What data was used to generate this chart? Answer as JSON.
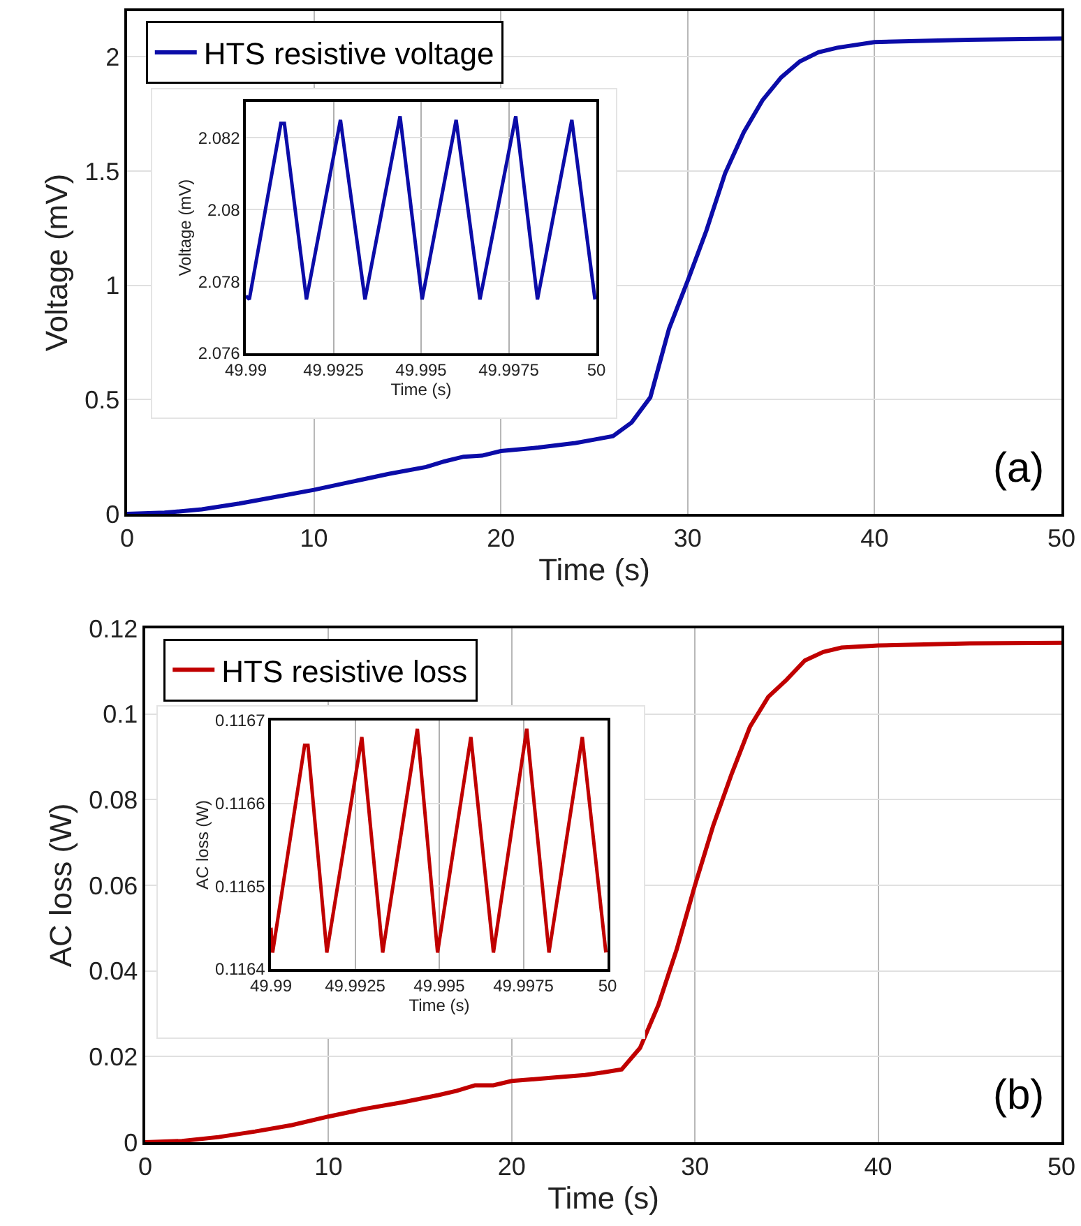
{
  "chart_data": [
    {
      "type": "line",
      "xlabel": "Time (s)",
      "ylabel": "Voltage (mV)",
      "xlim": [
        0,
        50
      ],
      "ylim": [
        0,
        2.2
      ],
      "xticks": [
        0,
        10,
        20,
        30,
        40,
        50
      ],
      "yticks": [
        0,
        0.5,
        1,
        1.5,
        2
      ],
      "grid": true,
      "legend": "top left",
      "annotations": [
        "(a)"
      ],
      "x": [
        0,
        2,
        4,
        6,
        8,
        10,
        12,
        14,
        16,
        17,
        18,
        19,
        20,
        22,
        24,
        25,
        26,
        27,
        28,
        29,
        30,
        31,
        32,
        33,
        34,
        35,
        36,
        37,
        38,
        40,
        45,
        50
      ],
      "series": [
        {
          "name": "HTS resistive voltage",
          "color": "#0b0ca8",
          "values": [
            0,
            0.005,
            0.02,
            0.045,
            0.075,
            0.105,
            0.14,
            0.175,
            0.205,
            0.23,
            0.25,
            0.255,
            0.275,
            0.29,
            0.31,
            0.325,
            0.34,
            0.4,
            0.51,
            0.81,
            1.02,
            1.24,
            1.49,
            1.67,
            1.81,
            1.91,
            1.98,
            2.02,
            2.04,
            2.065,
            2.075,
            2.08
          ]
        }
      ]
    },
    {
      "type": "line",
      "xlabel": "Time (s)",
      "ylabel": "Voltage (mV)",
      "xlim": [
        49.99,
        50
      ],
      "ylim": [
        2.076,
        2.083
      ],
      "xticks": [
        49.99,
        49.9925,
        49.995,
        49.9975,
        50
      ],
      "yticks": [
        2.076,
        2.078,
        2.08,
        2.082
      ],
      "grid": true,
      "x": [
        49.99,
        49.9901,
        49.991,
        49.9911,
        49.99173,
        49.9927,
        49.9934,
        49.9944,
        49.99503,
        49.996,
        49.99668,
        49.9977,
        49.99832,
        49.9993,
        49.99996
      ],
      "series": [
        {
          "color": "#0b0ca8",
          "values": [
            2.0776,
            2.0775,
            2.0824,
            2.0824,
            2.0775,
            2.0825,
            2.0775,
            2.0826,
            2.0775,
            2.0825,
            2.0775,
            2.0826,
            2.0775,
            2.0825,
            2.0775
          ]
        }
      ]
    },
    {
      "type": "line",
      "xlabel": "Time (s)",
      "ylabel": "AC loss (W)",
      "xlim": [
        0,
        50
      ],
      "ylim": [
        0,
        0.12
      ],
      "xticks": [
        0,
        10,
        20,
        30,
        40,
        50
      ],
      "yticks": [
        0,
        0.02,
        0.04,
        0.06,
        0.08,
        0.1,
        0.12
      ],
      "grid": true,
      "legend": "top left",
      "annotations": [
        "(b)"
      ],
      "x": [
        0,
        2,
        4,
        6,
        8,
        10,
        12,
        14,
        16,
        17,
        18,
        19,
        20,
        22,
        24,
        25,
        26,
        27,
        28,
        29,
        30,
        31,
        32,
        33,
        34,
        35,
        36,
        37,
        38,
        40,
        45,
        50
      ],
      "series": [
        {
          "name": "HTS resistive loss",
          "color": "#c00000",
          "values": [
            0,
            0.0003,
            0.0012,
            0.0025,
            0.004,
            0.006,
            0.0078,
            0.0093,
            0.011,
            0.012,
            0.0133,
            0.0133,
            0.0143,
            0.015,
            0.0157,
            0.0163,
            0.017,
            0.022,
            0.032,
            0.045,
            0.06,
            0.074,
            0.086,
            0.097,
            0.104,
            0.108,
            0.1125,
            0.1145,
            0.1155,
            0.116,
            0.1165,
            0.1166
          ]
        }
      ]
    },
    {
      "type": "line",
      "xlabel": "Time (s)",
      "ylabel": "AC loss (W)",
      "xlim": [
        49.99,
        50
      ],
      "ylim": [
        0.1164,
        0.1167
      ],
      "xticks": [
        49.99,
        49.9925,
        49.995,
        49.9975,
        50
      ],
      "yticks": [
        0.1164,
        0.1165,
        0.1166,
        0.1167
      ],
      "grid": true,
      "x": [
        49.99,
        49.99005,
        49.991,
        49.9911,
        49.99166,
        49.9927,
        49.99332,
        49.99435,
        49.99495,
        49.99594,
        49.99661,
        49.9976,
        49.99826,
        49.99925,
        49.99995
      ],
      "series": [
        {
          "color": "#c00000",
          "values": [
            0.11645,
            0.11642,
            0.11667,
            0.11667,
            0.11642,
            0.11668,
            0.11642,
            0.11669,
            0.11642,
            0.11668,
            0.11642,
            0.11669,
            0.11642,
            0.11668,
            0.11642
          ]
        }
      ]
    }
  ]
}
